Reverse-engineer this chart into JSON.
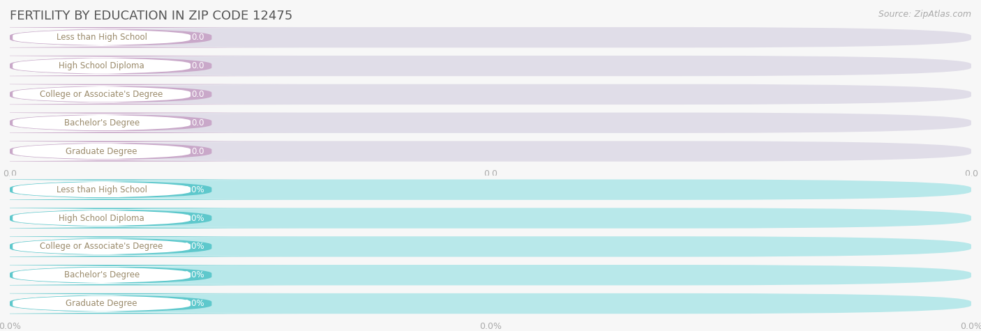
{
  "title": "FERTILITY BY EDUCATION IN ZIP CODE 12475",
  "source": "Source: ZipAtlas.com",
  "categories": [
    "Less than High School",
    "High School Diploma",
    "College or Associate's Degree",
    "Bachelor's Degree",
    "Graduate Degree"
  ],
  "values_top": [
    0.0,
    0.0,
    0.0,
    0.0,
    0.0
  ],
  "values_bottom": [
    0.0,
    0.0,
    0.0,
    0.0,
    0.0
  ],
  "bar_color_top": "#c9a8c9",
  "bar_color_bottom": "#5ec8cc",
  "bar_bg_color": "#e0dde8",
  "bar_bg_color_bottom": "#b8e8ea",
  "label_bg_color": "#ffffff",
  "label_text_color": "#9a8a6a",
  "value_text_color": "#ffffff",
  "fig_bg_color": "#f7f7f7",
  "row_sep_color": "#ffffff",
  "title_color": "#555555",
  "source_color": "#aaaaaa",
  "grid_color": "#cccccc",
  "tick_label_color": "#aaaaaa",
  "title_fontsize": 13,
  "source_fontsize": 9,
  "label_fontsize": 8.5,
  "value_fontsize": 8.5,
  "tick_fontsize": 9
}
